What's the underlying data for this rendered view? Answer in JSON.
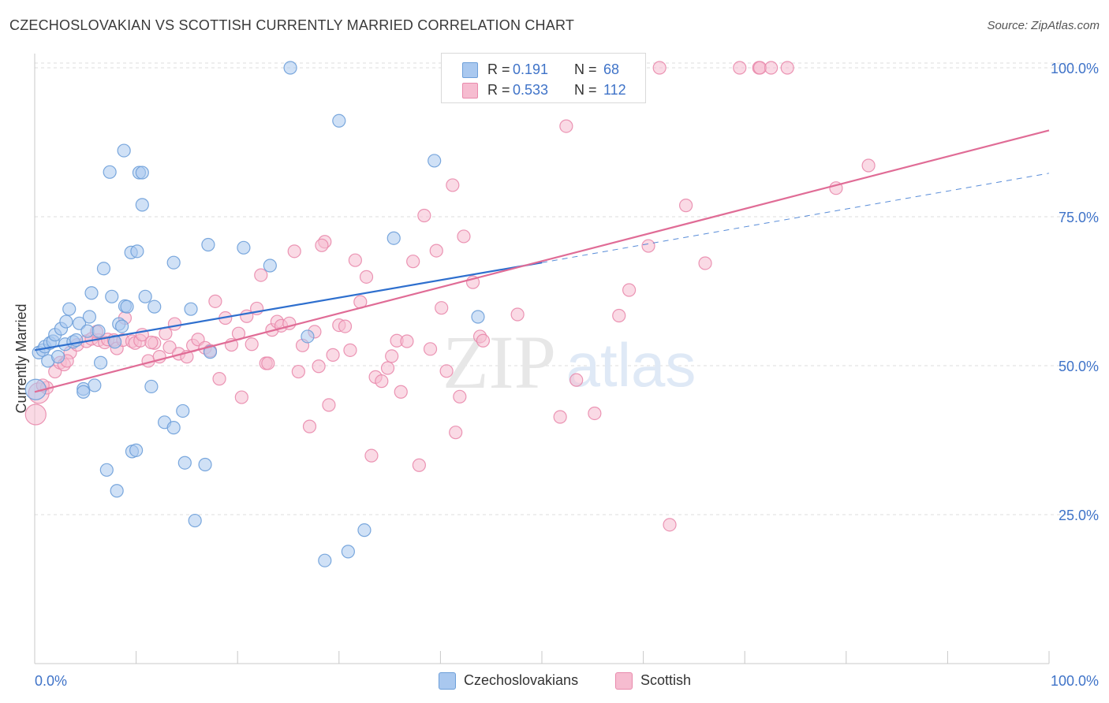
{
  "header": {
    "title": "CZECHOSLOVAKIAN VS SCOTTISH CURRENTLY MARRIED CORRELATION CHART",
    "source": "Source: ZipAtlas.com"
  },
  "watermark": {
    "zip": "ZIP",
    "atlas": "atlas"
  },
  "legend_top": {
    "rows": [
      {
        "r_label": "R =",
        "r_value": "0.191",
        "n_label": "N =",
        "n_value": "68"
      },
      {
        "r_label": "R =",
        "r_value": "0.533",
        "n_label": "N =",
        "n_value": "112"
      }
    ]
  },
  "legend_bottom": [
    "Czechoslovakians",
    "Scottish"
  ],
  "colors": {
    "blue_fill": "#a9c8ef",
    "blue_stroke": "#6d9fd9",
    "blue_line": "#2e6fce",
    "pink_fill": "#f6bcd0",
    "pink_stroke": "#e98aac",
    "pink_line": "#e06c96",
    "grid": "#dedede",
    "tick_text": "#3f73c8"
  },
  "chart_data": {
    "type": "scatter",
    "title": "CZECHOSLOVAKIAN VS SCOTTISH CURRENTLY MARRIED CORRELATION CHART",
    "xlabel": "",
    "ylabel": "Currently Married",
    "xlim": [
      0,
      100
    ],
    "ylim": [
      0,
      103
    ],
    "x_tick_labels": [
      "0.0%",
      "100.0%"
    ],
    "y_ticks": [
      25,
      50,
      75,
      100
    ],
    "y_tick_labels": [
      "25.0%",
      "50.0%",
      "75.0%",
      "100.0%"
    ],
    "grid": true,
    "legend_position": "top-center",
    "series": [
      {
        "name": "Czechoslovakians",
        "r": 0.191,
        "n": 68,
        "trend": {
          "x0": 0,
          "y0": 52.6,
          "x1": 50,
          "y1": 67.3,
          "dash_x1": 100,
          "dash_y1": 82.3
        },
        "points": [
          [
            0.4,
            52.2
          ],
          [
            0.8,
            52.6
          ],
          [
            1,
            53.2
          ],
          [
            1.3,
            50.8
          ],
          [
            1.5,
            53.8
          ],
          [
            1.8,
            54.1
          ],
          [
            2,
            55.2
          ],
          [
            2.3,
            51.5
          ],
          [
            2.6,
            56.2
          ],
          [
            3,
            53.6
          ],
          [
            3.1,
            57.4
          ],
          [
            3.4,
            59.5
          ],
          [
            3.8,
            54.0
          ],
          [
            4.1,
            54.3
          ],
          [
            4.4,
            57.1
          ],
          [
            4.8,
            46.1
          ],
          [
            4.8,
            45.6
          ],
          [
            5.2,
            55.8
          ],
          [
            5.4,
            58.2
          ],
          [
            5.6,
            62.2
          ],
          [
            5.9,
            46.7
          ],
          [
            6.3,
            55.8
          ],
          [
            6.5,
            50.5
          ],
          [
            6.8,
            66.3
          ],
          [
            7.1,
            32.5
          ],
          [
            7.4,
            82.5
          ],
          [
            7.6,
            61.6
          ],
          [
            7.9,
            54.0
          ],
          [
            8.1,
            29.0
          ],
          [
            8.3,
            57.0
          ],
          [
            8.6,
            56.6
          ],
          [
            8.8,
            86.1
          ],
          [
            8.9,
            60.0
          ],
          [
            9.1,
            59.9
          ],
          [
            9.5,
            69.0
          ],
          [
            9.6,
            35.6
          ],
          [
            10.0,
            35.8
          ],
          [
            10.1,
            69.2
          ],
          [
            10.3,
            82.4
          ],
          [
            10.6,
            82.4
          ],
          [
            10.6,
            77.0
          ],
          [
            10.9,
            61.6
          ],
          [
            11.5,
            46.5
          ],
          [
            11.8,
            59.9
          ],
          [
            12.8,
            40.5
          ],
          [
            13.7,
            39.6
          ],
          [
            13.7,
            67.3
          ],
          [
            14.6,
            42.4
          ],
          [
            14.8,
            33.7
          ],
          [
            15.4,
            59.5
          ],
          [
            15.8,
            24.0
          ],
          [
            16.8,
            33.4
          ],
          [
            17.1,
            70.3
          ],
          [
            17.3,
            52.3
          ],
          [
            20.6,
            69.8
          ],
          [
            23.2,
            66.8
          ],
          [
            25.2,
            100.0
          ],
          [
            26.9,
            54.9
          ],
          [
            28.6,
            17.3
          ],
          [
            30.0,
            91.1
          ],
          [
            30.9,
            18.8
          ],
          [
            32.5,
            22.4
          ],
          [
            35.4,
            71.4
          ],
          [
            39.4,
            84.4
          ],
          [
            43.7,
            58.2
          ],
          [
            48.3,
            100.0
          ],
          [
            49.4,
            100.0
          ],
          [
            0.1,
            46.0
          ]
        ]
      },
      {
        "name": "Scottish",
        "r": 0.533,
        "n": 112,
        "trend": {
          "x0": 0,
          "y0": 45.6,
          "x1": 100,
          "y1": 89.5
        },
        "points": [
          [
            0.1,
            41.8
          ],
          [
            0.4,
            45.4
          ],
          [
            1.2,
            46.3
          ],
          [
            2.0,
            49.0
          ],
          [
            2.5,
            50.5
          ],
          [
            2.9,
            50.2
          ],
          [
            3.5,
            52.2
          ],
          [
            4.2,
            53.5
          ],
          [
            5.1,
            54.1
          ],
          [
            5.6,
            54.5
          ],
          [
            6.3,
            54.3
          ],
          [
            6.9,
            53.9
          ],
          [
            7.2,
            54.4
          ],
          [
            7.8,
            54.3
          ],
          [
            8.1,
            52.9
          ],
          [
            8.7,
            54.3
          ],
          [
            8.9,
            58.0
          ],
          [
            9.6,
            54.1
          ],
          [
            9.9,
            53.8
          ],
          [
            10.4,
            54.2
          ],
          [
            10.6,
            55.2
          ],
          [
            11.2,
            50.8
          ],
          [
            11.8,
            53.8
          ],
          [
            12.3,
            51.5
          ],
          [
            12.9,
            55.4
          ],
          [
            13.3,
            53.1
          ],
          [
            13.8,
            57.0
          ],
          [
            14.2,
            52.0
          ],
          [
            15.0,
            51.5
          ],
          [
            15.6,
            53.4
          ],
          [
            16.1,
            54.4
          ],
          [
            16.8,
            53.0
          ],
          [
            17.3,
            52.5
          ],
          [
            17.8,
            60.8
          ],
          [
            18.2,
            47.8
          ],
          [
            18.8,
            58.0
          ],
          [
            19.4,
            53.5
          ],
          [
            20.1,
            55.4
          ],
          [
            20.4,
            44.7
          ],
          [
            20.9,
            58.3
          ],
          [
            21.4,
            53.6
          ],
          [
            21.9,
            59.6
          ],
          [
            22.3,
            65.2
          ],
          [
            22.8,
            50.4
          ],
          [
            23.4,
            56.0
          ],
          [
            23.9,
            57.4
          ],
          [
            24.3,
            56.7
          ],
          [
            25.1,
            57.1
          ],
          [
            25.6,
            69.2
          ],
          [
            26.0,
            49.0
          ],
          [
            26.4,
            53.4
          ],
          [
            27.1,
            39.8
          ],
          [
            27.6,
            55.7
          ],
          [
            28.0,
            49.9
          ],
          [
            28.6,
            70.8
          ],
          [
            29.0,
            43.4
          ],
          [
            29.4,
            51.8
          ],
          [
            30.0,
            56.8
          ],
          [
            30.6,
            56.6
          ],
          [
            31.1,
            52.6
          ],
          [
            31.6,
            67.7
          ],
          [
            32.1,
            60.7
          ],
          [
            32.7,
            64.9
          ],
          [
            33.2,
            34.9
          ],
          [
            33.6,
            48.1
          ],
          [
            34.2,
            47.4
          ],
          [
            34.8,
            49.6
          ],
          [
            35.2,
            51.6
          ],
          [
            35.7,
            54.2
          ],
          [
            36.1,
            45.6
          ],
          [
            36.7,
            54.1
          ],
          [
            37.3,
            67.5
          ],
          [
            37.9,
            33.3
          ],
          [
            38.4,
            75.2
          ],
          [
            39.0,
            52.8
          ],
          [
            39.6,
            69.3
          ],
          [
            40.1,
            59.7
          ],
          [
            40.6,
            49.1
          ],
          [
            41.2,
            80.3
          ],
          [
            41.5,
            38.8
          ],
          [
            41.9,
            44.8
          ],
          [
            42.3,
            71.7
          ],
          [
            43.2,
            64.0
          ],
          [
            43.9,
            54.9
          ],
          [
            44.2,
            54.2
          ],
          [
            45.1,
            98.4
          ],
          [
            47.6,
            58.6
          ],
          [
            49.3,
            100.0
          ],
          [
            51.8,
            41.4
          ],
          [
            52.4,
            90.2
          ],
          [
            53.4,
            47.6
          ],
          [
            55.2,
            42.0
          ],
          [
            57.6,
            58.4
          ],
          [
            58.6,
            62.7
          ],
          [
            60.5,
            70.1
          ],
          [
            61.6,
            100.0
          ],
          [
            62.6,
            23.3
          ],
          [
            64.2,
            76.9
          ],
          [
            66.1,
            67.2
          ],
          [
            69.5,
            100.0
          ],
          [
            71.4,
            100.0
          ],
          [
            71.5,
            100.0
          ],
          [
            72.6,
            100.0
          ],
          [
            74.2,
            100.0
          ],
          [
            79.0,
            79.8
          ],
          [
            82.2,
            83.6
          ],
          [
            0.8,
            46.7
          ],
          [
            3.2,
            50.8
          ],
          [
            6.1,
            55.7
          ],
          [
            11.5,
            53.9
          ],
          [
            23.0,
            50.4
          ],
          [
            28.3,
            70.2
          ]
        ]
      }
    ]
  }
}
